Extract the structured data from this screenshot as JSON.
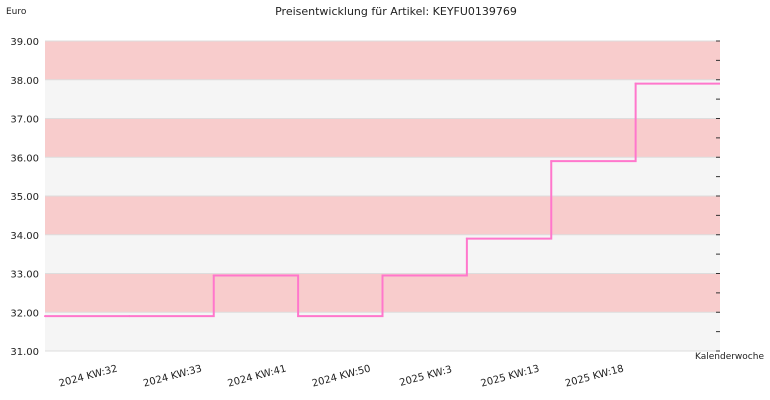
{
  "chart_data": {
    "type": "line",
    "step": true,
    "title": "Preisentwicklung für Artikel: KEYFU0139769",
    "ylabel": "Euro",
    "xlabel": "Kalenderwoche",
    "ylim": [
      31.0,
      39.0
    ],
    "y_ticks": [
      "31.00",
      "32.00",
      "33.00",
      "34.00",
      "35.00",
      "36.00",
      "37.00",
      "38.00",
      "39.00"
    ],
    "x_ticks": [
      "2024 KW:32",
      "2024 KW:33",
      "2024 KW:41",
      "2024 KW:50",
      "2025 KW:3",
      "2025 KW:13",
      "2025 KW:18"
    ],
    "band_colors": [
      "#f8cccc",
      "#f5f5f5"
    ],
    "line_color": "#ff77cc",
    "series": [
      {
        "x": [
          0,
          1,
          2,
          3,
          4,
          5,
          6,
          7
        ],
        "values": [
          31.9,
          31.9,
          32.95,
          31.9,
          32.95,
          33.9,
          35.9,
          37.9
        ]
      }
    ]
  }
}
